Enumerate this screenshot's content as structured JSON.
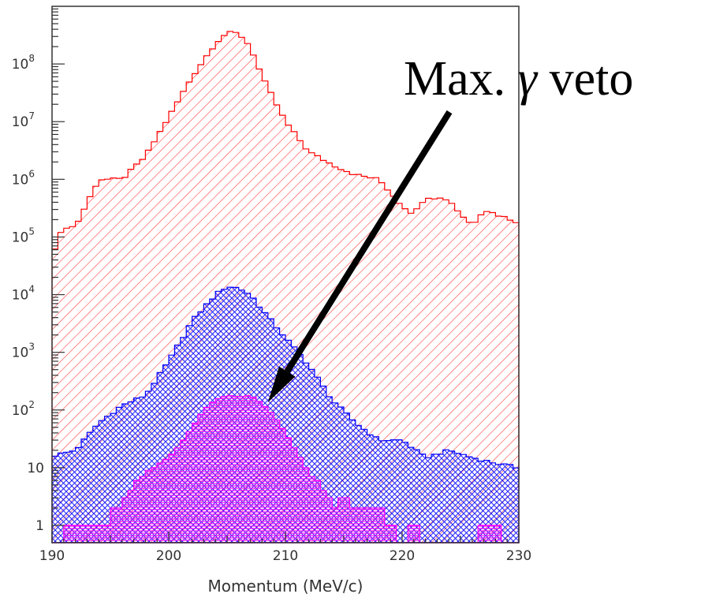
{
  "chart_data": {
    "type": "histogram",
    "title": "",
    "xlabel": "Momentum (MeV/c)",
    "ylabel": "",
    "y_scale": "log",
    "xlim": [
      190,
      230
    ],
    "ylim": [
      0.5,
      1000000000
    ],
    "x_ticks": [
      "190",
      "200",
      "210",
      "220",
      "230"
    ],
    "y_ticks": [
      {
        "value": 1,
        "label": "1",
        "exp": ""
      },
      {
        "value": 10,
        "label": "10",
        "exp": ""
      },
      {
        "value": 100,
        "label": "10",
        "exp": "2"
      },
      {
        "value": 1000,
        "label": "10",
        "exp": "3"
      },
      {
        "value": 10000,
        "label": "10",
        "exp": "4"
      },
      {
        "value": 100000,
        "label": "10",
        "exp": "5"
      },
      {
        "value": 1000000,
        "label": "10",
        "exp": "6"
      },
      {
        "value": 10000000,
        "label": "10",
        "exp": "7"
      },
      {
        "value": 100000000,
        "label": "10",
        "exp": "8"
      }
    ],
    "bin_width": 0.5,
    "series": [
      {
        "color": "#ff0000",
        "hatch": "diagonal",
        "x_knots": [
          190,
          191,
          192,
          194,
          196,
          198,
          200,
          202,
          204,
          205,
          206,
          207,
          208,
          210,
          212,
          214,
          216,
          218,
          220,
          221,
          222,
          224,
          225,
          226,
          227,
          228,
          230
        ],
        "y_knots": [
          50000,
          150000,
          150000,
          1000000,
          1000000,
          2500000,
          12000000,
          60000000,
          230000000,
          350000000,
          340000000,
          200000000,
          60000000,
          10000000,
          3000000,
          1800000,
          1200000,
          1000000,
          350000,
          250000,
          500000,
          450000,
          250000,
          160000,
          300000,
          250000,
          180000
        ]
      },
      {
        "color": "#0000ff",
        "hatch": "cross",
        "x_knots": [
          190,
          192,
          194,
          196,
          198,
          200,
          202,
          204,
          205,
          206,
          207,
          208,
          210,
          212,
          214,
          216,
          218,
          220,
          222,
          224,
          226,
          228,
          230
        ],
        "y_knots": [
          16,
          20,
          60,
          120,
          180,
          700,
          3500,
          10000,
          14000,
          13000,
          10000,
          5500,
          1800,
          600,
          150,
          60,
          30,
          30,
          15,
          20,
          15,
          12,
          10
        ]
      },
      {
        "color": "#ff00ff",
        "hatch": "horizontal",
        "x_knots": [
          190,
          191,
          191.5,
          194,
          194.5,
          195.5,
          197,
          198,
          200,
          201,
          202,
          203,
          204,
          205,
          206,
          207,
          208,
          209,
          210,
          211,
          212,
          213,
          214,
          215,
          216,
          217,
          218,
          219,
          220,
          221,
          222,
          226.5,
          227,
          230
        ],
        "y_knots": [
          0,
          0,
          1,
          1,
          0,
          2,
          5,
          8,
          15,
          25,
          50,
          100,
          150,
          180,
          170,
          180,
          130,
          80,
          40,
          18,
          8,
          5,
          2,
          3,
          2,
          2,
          2,
          1,
          0,
          1,
          0,
          0,
          1,
          0
        ]
      }
    ],
    "annotations": [
      {
        "text_main": "Max. ",
        "text_symbol": "γ",
        "text_tail": " veto",
        "arrow_target": [
          208.5,
          120
        ]
      }
    ]
  }
}
